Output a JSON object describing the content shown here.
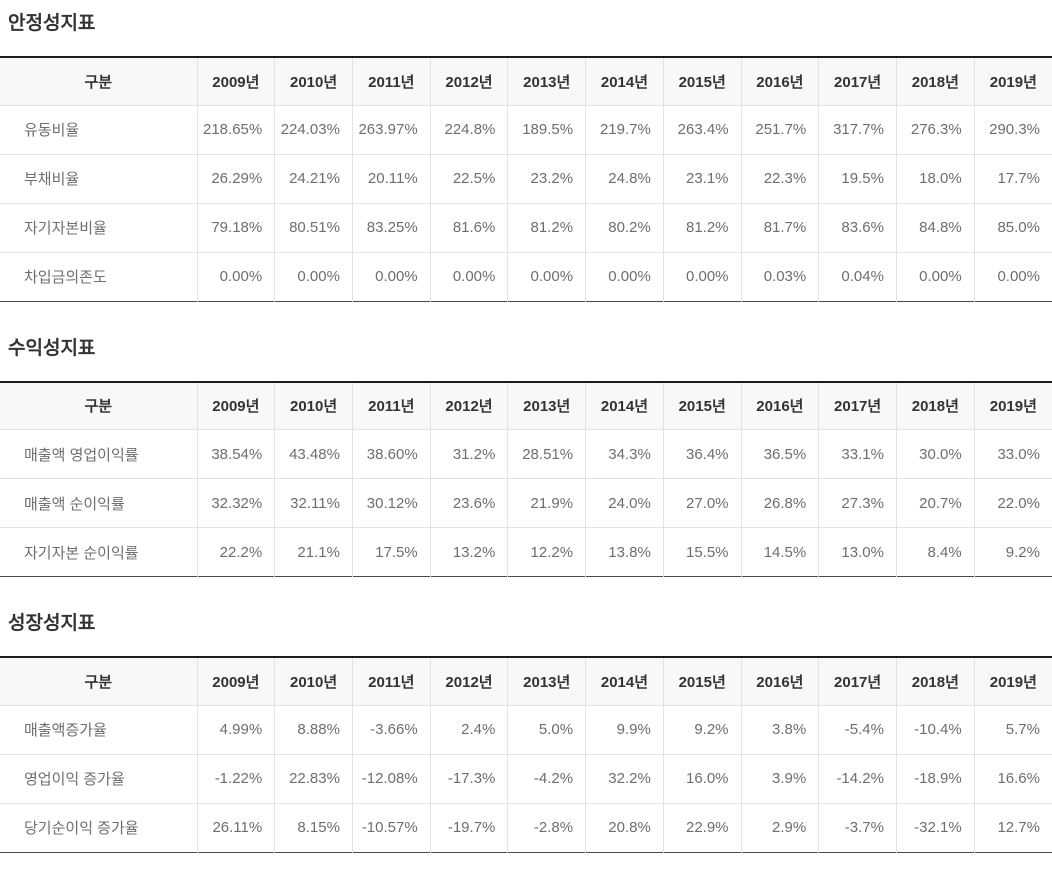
{
  "styles": {
    "header_bg": "#f7f8f9",
    "grid_line": "#e2e3e5",
    "table_top_rule": "#1d1d1f",
    "table_bottom_rule": "#4a4a4c",
    "title_color": "#333333",
    "header_text_color": "#333333",
    "data_text_color": "#6d6e70",
    "page_background": "#ffffff"
  },
  "tables": [
    {
      "title": "안정성지표",
      "label_header": "구분",
      "years": [
        "2009년",
        "2010년",
        "2011년",
        "2012년",
        "2013년",
        "2014년",
        "2015년",
        "2016년",
        "2017년",
        "2018년",
        "2019년"
      ],
      "rows": [
        {
          "label": "유동비율",
          "values": [
            "218.65%",
            "224.03%",
            "263.97%",
            "224.8%",
            "189.5%",
            "219.7%",
            "263.4%",
            "251.7%",
            "317.7%",
            "276.3%",
            "290.3%"
          ]
        },
        {
          "label": "부채비율",
          "values": [
            "26.29%",
            "24.21%",
            "20.11%",
            "22.5%",
            "23.2%",
            "24.8%",
            "23.1%",
            "22.3%",
            "19.5%",
            "18.0%",
            "17.7%"
          ]
        },
        {
          "label": "자기자본비율",
          "values": [
            "79.18%",
            "80.51%",
            "83.25%",
            "81.6%",
            "81.2%",
            "80.2%",
            "81.2%",
            "81.7%",
            "83.6%",
            "84.8%",
            "85.0%"
          ]
        },
        {
          "label": "차입금의존도",
          "values": [
            "0.00%",
            "0.00%",
            "0.00%",
            "0.00%",
            "0.00%",
            "0.00%",
            "0.00%",
            "0.03%",
            "0.04%",
            "0.00%",
            "0.00%"
          ]
        }
      ]
    },
    {
      "title": "수익성지표",
      "label_header": "구분",
      "years": [
        "2009년",
        "2010년",
        "2011년",
        "2012년",
        "2013년",
        "2014년",
        "2015년",
        "2016년",
        "2017년",
        "2018년",
        "2019년"
      ],
      "rows": [
        {
          "label": "매출액 영업이익률",
          "values": [
            "38.54%",
            "43.48%",
            "38.60%",
            "31.2%",
            "28.51%",
            "34.3%",
            "36.4%",
            "36.5%",
            "33.1%",
            "30.0%",
            "33.0%"
          ]
        },
        {
          "label": "매출액 순이익률",
          "values": [
            "32.32%",
            "32.11%",
            "30.12%",
            "23.6%",
            "21.9%",
            "24.0%",
            "27.0%",
            "26.8%",
            "27.3%",
            "20.7%",
            "22.0%"
          ]
        },
        {
          "label": "자기자본 순이익률",
          "values": [
            "22.2%",
            "21.1%",
            "17.5%",
            "13.2%",
            "12.2%",
            "13.8%",
            "15.5%",
            "14.5%",
            "13.0%",
            "8.4%",
            "9.2%"
          ]
        }
      ]
    },
    {
      "title": "성장성지표",
      "label_header": "구분",
      "years": [
        "2009년",
        "2010년",
        "2011년",
        "2012년",
        "2013년",
        "2014년",
        "2015년",
        "2016년",
        "2017년",
        "2018년",
        "2019년"
      ],
      "rows": [
        {
          "label": "매출액증가율",
          "values": [
            "4.99%",
            "8.88%",
            "-3.66%",
            "2.4%",
            "5.0%",
            "9.9%",
            "9.2%",
            "3.8%",
            "-5.4%",
            "-10.4%",
            "5.7%"
          ]
        },
        {
          "label": "영업이익 증가율",
          "values": [
            "-1.22%",
            "22.83%",
            "-12.08%",
            "-17.3%",
            "-4.2%",
            "32.2%",
            "16.0%",
            "3.9%",
            "-14.2%",
            "-18.9%",
            "16.6%"
          ]
        },
        {
          "label": "당기순이익 증가율",
          "values": [
            "26.11%",
            "8.15%",
            "-10.57%",
            "-19.7%",
            "-2.8%",
            "20.8%",
            "22.9%",
            "2.9%",
            "-3.7%",
            "-32.1%",
            "12.7%"
          ]
        }
      ]
    }
  ]
}
